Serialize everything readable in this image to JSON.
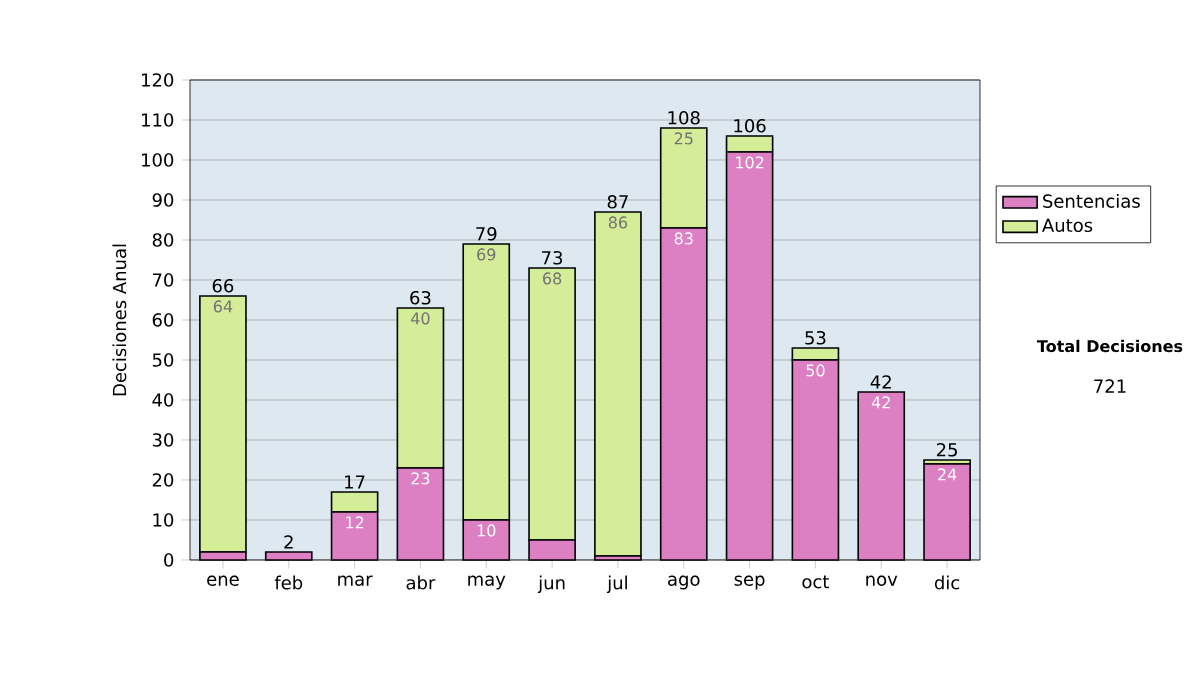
{
  "chart_data": {
    "type": "bar",
    "stacked": true,
    "ylabel": "Decisiones Anual",
    "categories": [
      "ene",
      "feb",
      "mar",
      "abr",
      "may",
      "jun",
      "jul",
      "ago",
      "sep",
      "oct",
      "nov",
      "dic"
    ],
    "series": [
      {
        "name": "Sentencias",
        "color": "#dd7fc3",
        "values": [
          2,
          2,
          12,
          23,
          10,
          5,
          1,
          83,
          102,
          50,
          42,
          24
        ],
        "value_labels": [
          null,
          null,
          "12",
          "23",
          "10",
          null,
          null,
          "83",
          "102",
          "50",
          "42",
          "24"
        ]
      },
      {
        "name": "Autos",
        "color": "#d5ec98",
        "values": [
          64,
          0,
          5,
          40,
          69,
          68,
          86,
          25,
          4,
          3,
          0,
          1
        ],
        "value_labels": [
          "64",
          null,
          null,
          "40",
          "69",
          "68",
          "86",
          "25",
          null,
          null,
          null,
          null
        ]
      }
    ],
    "totals": [
      "66",
      "2",
      "17",
      "63",
      "79",
      "73",
      "87",
      "108",
      "106",
      "53",
      "42",
      "25"
    ],
    "ylim": [
      0,
      120
    ],
    "yticks": [
      0,
      10,
      20,
      30,
      40,
      50,
      60,
      70,
      80,
      90,
      100,
      110,
      120
    ],
    "grid": "y",
    "legend": "right",
    "annotations": [
      "Total Decisiones",
      "721"
    ]
  }
}
